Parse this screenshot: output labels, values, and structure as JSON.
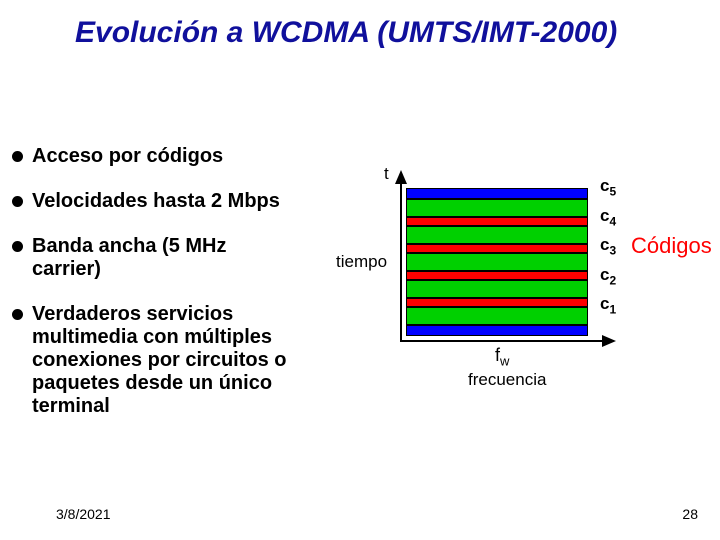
{
  "title": {
    "text": "Evolución a WCDMA (UMTS/IMT-2000)",
    "color": "#10109c"
  },
  "bullets": [
    "Acceso por códigos",
    "Velocidades hasta 2 Mbps",
    "Banda ancha  (5 MHz carrier)",
    "Verdaderos servicios multimedia con múltiples conexiones por circuitos o paquetes desde un único terminal"
  ],
  "diagram": {
    "t_label": "t",
    "tiempo_label": "tiempo",
    "fw_label_main": "f",
    "fw_label_sub": "w",
    "frecuencia_label": "frecuencia",
    "codigos_label": "Códigos",
    "codigos_color": "#ff0000",
    "c_labels": [
      "5",
      "4",
      "3",
      "2",
      "1"
    ],
    "colors": {
      "blue": "#0000ff",
      "green": "#00d000",
      "red": "#ff0000",
      "axis": "#000000"
    },
    "layers": [
      {
        "class": "band-blue",
        "h": 11
      },
      {
        "class": "band-green",
        "h": 18
      },
      {
        "class": "band-red",
        "h": 9
      },
      {
        "class": "band-green",
        "h": 18
      },
      {
        "class": "band-red",
        "h": 9
      },
      {
        "class": "band-green",
        "h": 18
      },
      {
        "class": "band-red",
        "h": 9
      },
      {
        "class": "band-green",
        "h": 18
      },
      {
        "class": "band-red",
        "h": 9
      },
      {
        "class": "band-green",
        "h": 18
      },
      {
        "class": "band-blue",
        "h": 11
      }
    ]
  },
  "footer": {
    "date": "3/8/2021",
    "page": "28"
  }
}
